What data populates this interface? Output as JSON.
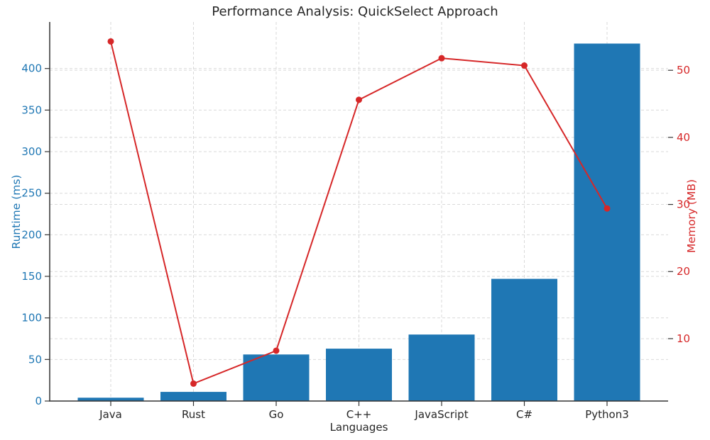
{
  "title": "Performance Analysis: QuickSelect Approach",
  "colors": {
    "bar": "#1f77b4",
    "line": "#d62728",
    "grid": "#d9d9d9",
    "spine": "#333333",
    "tick_label_left": "#1f77b4",
    "tick_label_right": "#d62728",
    "tick_label_bottom": "#262626",
    "background": "#ffffff"
  },
  "chart_data": {
    "type": "bar",
    "subtype": "combo-bar-line-dual-axis",
    "title": "Performance Analysis: QuickSelect Approach",
    "xlabel": "Languages",
    "ylabel_left": "Runtime (ms)",
    "ylabel_right": "Memory (MB)",
    "categories": [
      "Java",
      "Rust",
      "Go",
      "C++",
      "JavaScript",
      "C#",
      "Python3"
    ],
    "series": [
      {
        "name": "Runtime (ms)",
        "type": "bar",
        "axis": "left",
        "color": "#1f77b4",
        "values": [
          4,
          11,
          56,
          63,
          80,
          147,
          430
        ]
      },
      {
        "name": "Memory (MB)",
        "type": "line",
        "axis": "right",
        "color": "#d62728",
        "values": [
          54.3,
          3.3,
          8.2,
          45.6,
          51.8,
          50.7,
          29.4
        ]
      }
    ],
    "left_ticks": [
      0,
      50,
      100,
      150,
      200,
      250,
      300,
      350,
      400
    ],
    "right_ticks": [
      10,
      20,
      30,
      40,
      50
    ],
    "ylim_left": [
      0,
      456
    ],
    "ylim_right": [
      0.7,
      57.2
    ],
    "grid": "dashed",
    "legend": "none"
  }
}
